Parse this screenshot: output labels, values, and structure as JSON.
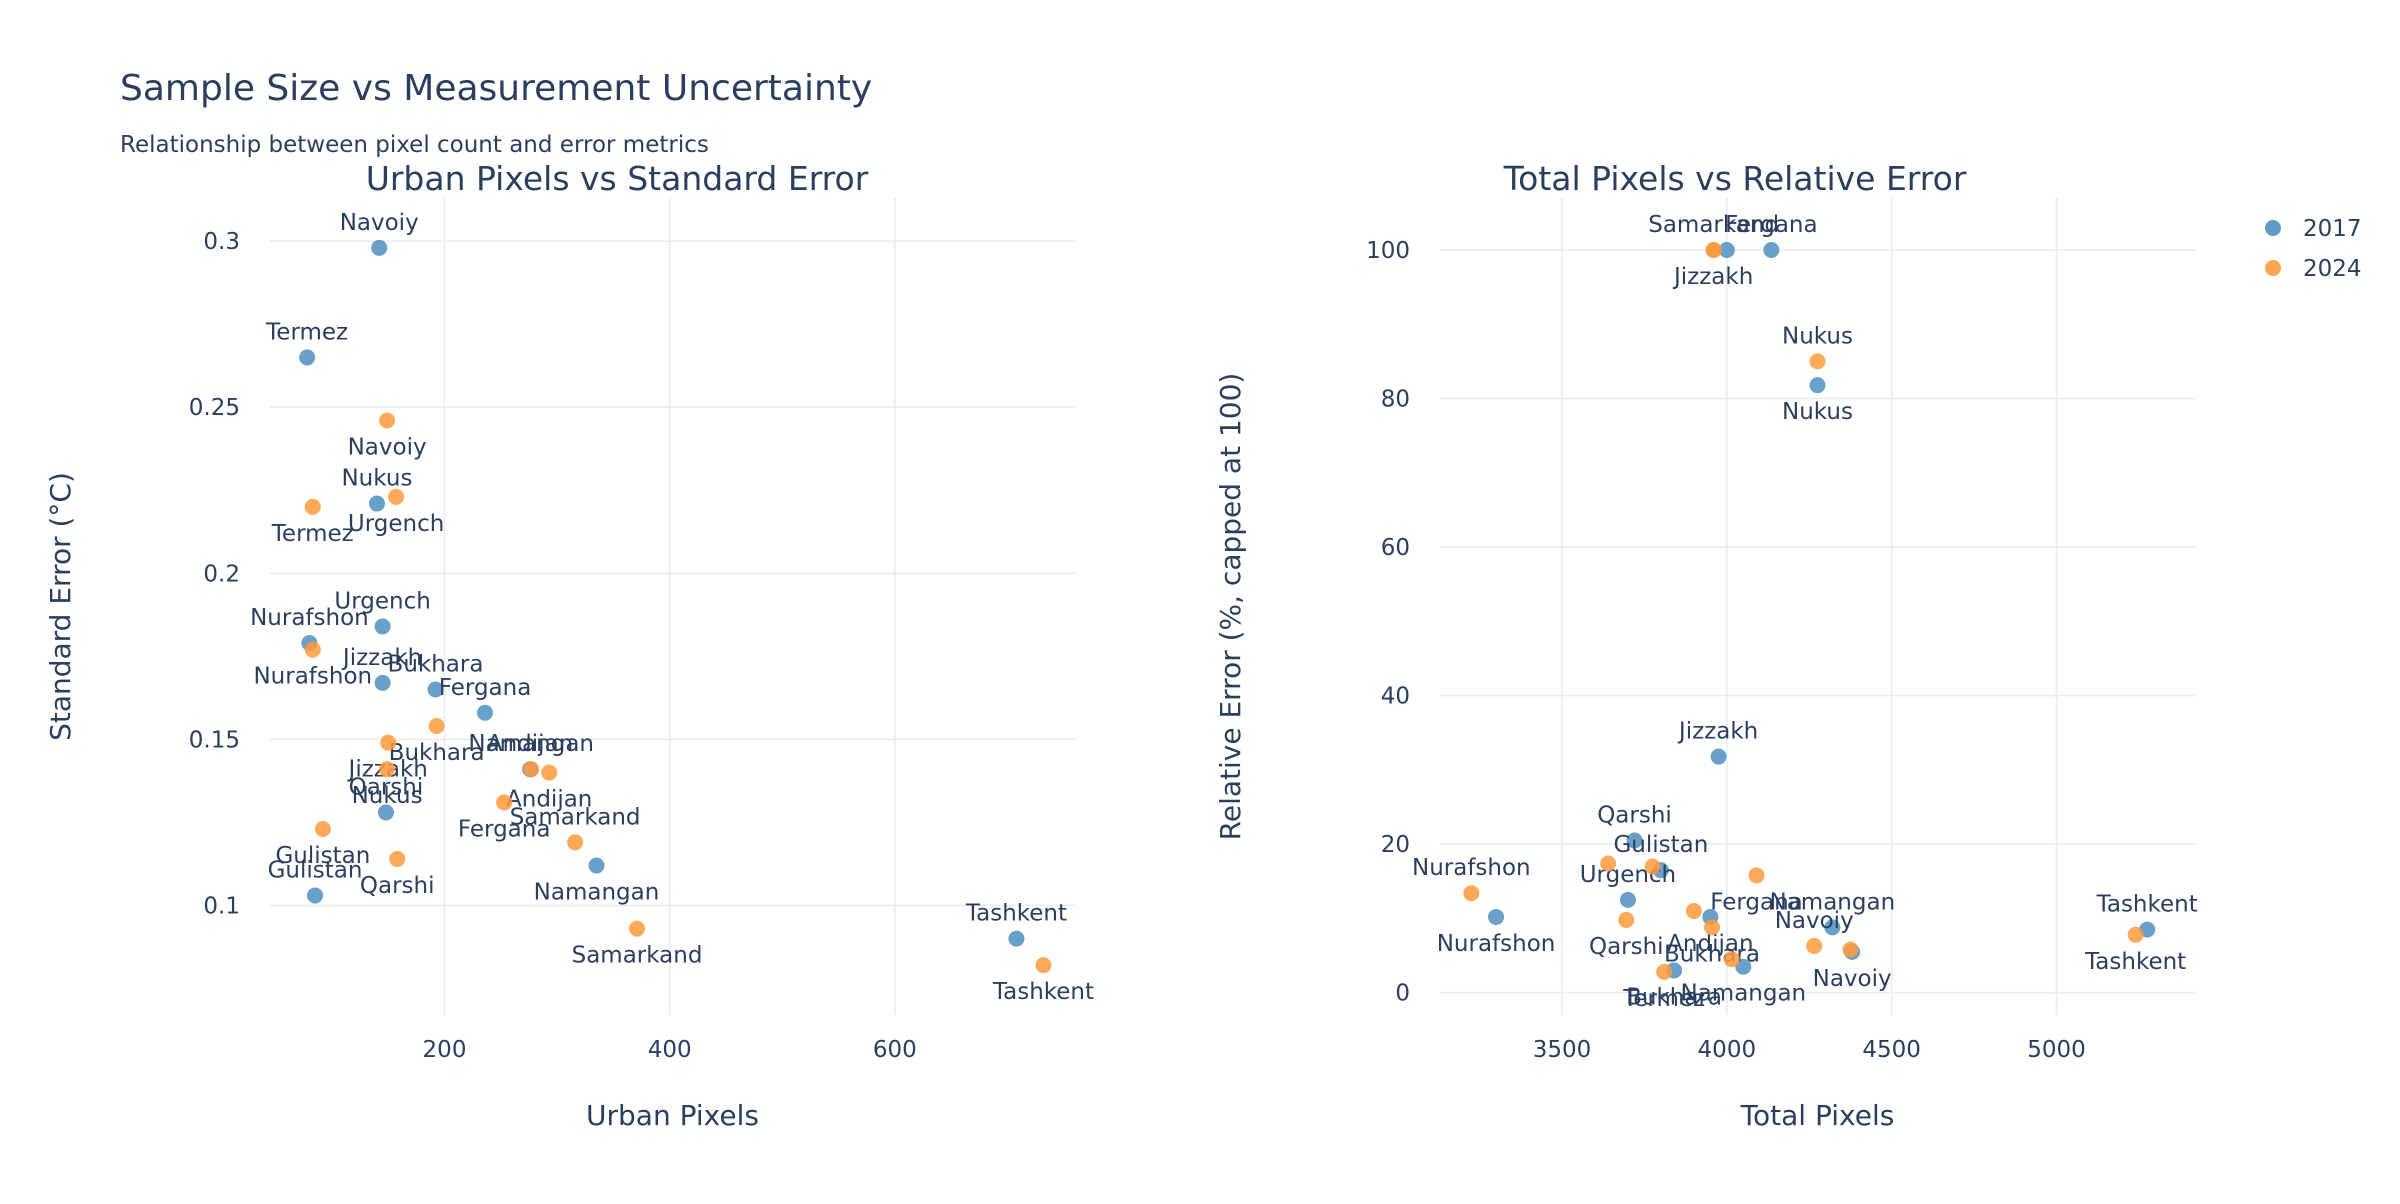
{
  "page": {
    "title": "Sample Size vs Measurement Uncertainty",
    "subtitle": "Relationship between pixel count and error metrics"
  },
  "legend": [
    {
      "name": "2017",
      "color": "#4f8fc0"
    },
    {
      "name": "2024",
      "color": "#ff9a3c"
    }
  ],
  "chart_data": [
    {
      "type": "scatter",
      "title": "Urban Pixels vs Standard Error",
      "xlabel": "Urban Pixels",
      "ylabel": "Standard Error (°C)",
      "xlim": [
        45,
        760
      ],
      "ylim": [
        0.067,
        0.313
      ],
      "xticks": [
        200,
        400,
        600
      ],
      "yticks": [
        0.1,
        0.15,
        0.2,
        0.25,
        0.3
      ],
      "ytick_labels": [
        "0.1",
        "0.15",
        "0.2",
        "0.25",
        "0.3"
      ],
      "grid": true,
      "series": [
        {
          "name": "2017",
          "color": "#4f8fc0",
          "points": [
            {
              "label": "Navoiy",
              "x": 142,
              "y": 0.298,
              "pos": "top"
            },
            {
              "label": "Termez",
              "x": 78,
              "y": 0.265,
              "pos": "top"
            },
            {
              "label": "Nukus",
              "x": 140,
              "y": 0.221,
              "pos": "top"
            },
            {
              "label": "Urgench",
              "x": 145,
              "y": 0.184,
              "pos": "top"
            },
            {
              "label": "Nurafshon",
              "x": 80,
              "y": 0.179,
              "pos": "top"
            },
            {
              "label": "Jizzakh",
              "x": 145,
              "y": 0.167,
              "pos": "top"
            },
            {
              "label": "Bukhara",
              "x": 192,
              "y": 0.165,
              "pos": "top"
            },
            {
              "label": "Fergana",
              "x": 236,
              "y": 0.158,
              "pos": "top"
            },
            {
              "label": "Namangan",
              "x": 335,
              "y": 0.112,
              "pos": "bottom"
            },
            {
              "label": "Andijan",
              "x": 276,
              "y": 0.141,
              "pos": "top"
            },
            {
              "label": "Qarshi",
              "x": 148,
              "y": 0.128,
              "pos": "top"
            },
            {
              "label": "Gulistan",
              "x": 85,
              "y": 0.103,
              "pos": "top"
            },
            {
              "label": "Tashkent",
              "x": 708,
              "y": 0.09,
              "pos": "top"
            }
          ]
        },
        {
          "name": "2024",
          "color": "#ff9a3c",
          "points": [
            {
              "label": "Navoiy",
              "x": 149,
              "y": 0.246,
              "pos": "bottom"
            },
            {
              "label": "Termez",
              "x": 83,
              "y": 0.22,
              "pos": "bottom"
            },
            {
              "label": "Urgench",
              "x": 157,
              "y": 0.223,
              "pos": "bottom"
            },
            {
              "label": "Nurafshon",
              "x": 83,
              "y": 0.177,
              "pos": "bottom"
            },
            {
              "label": "Bukhara",
              "x": 193,
              "y": 0.154,
              "pos": "bottom"
            },
            {
              "label": "Jizzakh",
              "x": 150,
              "y": 0.149,
              "pos": "bottom"
            },
            {
              "label": "Namangan",
              "x": 277,
              "y": 0.141,
              "pos": "top"
            },
            {
              "label": "Nukus",
              "x": 149,
              "y": 0.141,
              "pos": "bottom"
            },
            {
              "label": "Andijan",
              "x": 293,
              "y": 0.14,
              "pos": "bottom"
            },
            {
              "label": "Fergana",
              "x": 253,
              "y": 0.131,
              "pos": "bottom"
            },
            {
              "label": "Gulistan",
              "x": 92,
              "y": 0.123,
              "pos": "bottom"
            },
            {
              "label": "Samarkand",
              "x": 316,
              "y": 0.119,
              "pos": "top"
            },
            {
              "label": "Qarshi",
              "x": 158,
              "y": 0.114,
              "pos": "bottom"
            },
            {
              "label": "Samarkand",
              "x": 371,
              "y": 0.093,
              "pos": "bottom"
            },
            {
              "label": "Tashkent",
              "x": 732,
              "y": 0.082,
              "pos": "bottom"
            }
          ]
        }
      ]
    },
    {
      "type": "scatter",
      "title": "Total Pixels vs Relative Error",
      "xlabel": "Total Pixels",
      "ylabel": "Relative Error (%, capped at 100)",
      "xlim": [
        3130,
        5420
      ],
      "ylim": [
        -3,
        107
      ],
      "xticks": [
        3500,
        4000,
        4500,
        5000
      ],
      "yticks": [
        0,
        20,
        40,
        60,
        80,
        100
      ],
      "ytick_labels": [
        "0",
        "20",
        "40",
        "60",
        "80",
        "100"
      ],
      "grid": true,
      "series": [
        {
          "name": "2017",
          "color": "#4f8fc0",
          "points": [
            {
              "label": "Fergana",
              "x": 4135,
              "y": 100,
              "pos": "top"
            },
            {
              "label": "Samarkand",
              "x": 4000,
              "y": 100,
              "pos": "none"
            },
            {
              "label": "Nukus",
              "x": 4275,
              "y": 81.8,
              "pos": "bottom"
            },
            {
              "label": "Jizzakh",
              "x": 3975,
              "y": 31.8,
              "pos": "top"
            },
            {
              "label": "Qarshi",
              "x": 3720,
              "y": 20.5,
              "pos": "top"
            },
            {
              "label": "Gulistan",
              "x": 3800,
              "y": 16.5,
              "pos": "top"
            },
            {
              "label": "Urgench",
              "x": 3700,
              "y": 12.5,
              "pos": "top"
            },
            {
              "label": "Nurafshon",
              "x": 3300,
              "y": 10.2,
              "pos": "bottom"
            },
            {
              "label": "Andijan",
              "x": 3950,
              "y": 10.2,
              "pos": "bottom"
            },
            {
              "label": "Namangan",
              "x": 4320,
              "y": 8.8,
              "pos": "top"
            },
            {
              "label": "Navoiy",
              "x": 4380,
              "y": 5.5,
              "pos": "bottom"
            },
            {
              "label": "Namangan",
              "x": 4050,
              "y": 3.5,
              "pos": "bottom"
            },
            {
              "label": "Bukhara",
              "x": 3840,
              "y": 3,
              "pos": "bottom"
            },
            {
              "label": "Tashkent",
              "x": 5275,
              "y": 8.5,
              "pos": "top"
            }
          ]
        },
        {
          "name": "2024",
          "color": "#ff9a3c",
          "points": [
            {
              "label": "Samarkand",
              "x": 3960,
              "y": 100,
              "pos": "top"
            },
            {
              "label": "Jizzakh",
              "x": 3960,
              "y": 100,
              "pos": "bottom"
            },
            {
              "label": "Nukus",
              "x": 4275,
              "y": 85,
              "pos": "top"
            },
            {
              "label": "Urgench",
              "x": 3640,
              "y": 17.4,
              "pos": "none"
            },
            {
              "label": "Gulistan",
              "x": 3775,
              "y": 17,
              "pos": "none"
            },
            {
              "label": "Fergana",
              "x": 4090,
              "y": 15.8,
              "pos": "bottom"
            },
            {
              "label": "Nurafshon",
              "x": 3225,
              "y": 13.4,
              "pos": "top"
            },
            {
              "label": "Andijan",
              "x": 3900,
              "y": 11,
              "pos": "none"
            },
            {
              "label": "Qarshi",
              "x": 3695,
              "y": 9.8,
              "pos": "bottom"
            },
            {
              "label": "Bukhara",
              "x": 3955,
              "y": 8.8,
              "pos": "bottom"
            },
            {
              "label": "Navoiy",
              "x": 4265,
              "y": 6.3,
              "pos": "top"
            },
            {
              "label": "Samarkand",
              "x": 4015,
              "y": 4.5,
              "pos": "none"
            },
            {
              "label": "Termez",
              "x": 3810,
              "y": 2.8,
              "pos": "bottom"
            },
            {
              "label": "Navoiy",
              "x": 4375,
              "y": 5.8,
              "pos": "none"
            },
            {
              "label": "Tashkent",
              "x": 5240,
              "y": 7.8,
              "pos": "bottom"
            }
          ]
        }
      ]
    }
  ]
}
